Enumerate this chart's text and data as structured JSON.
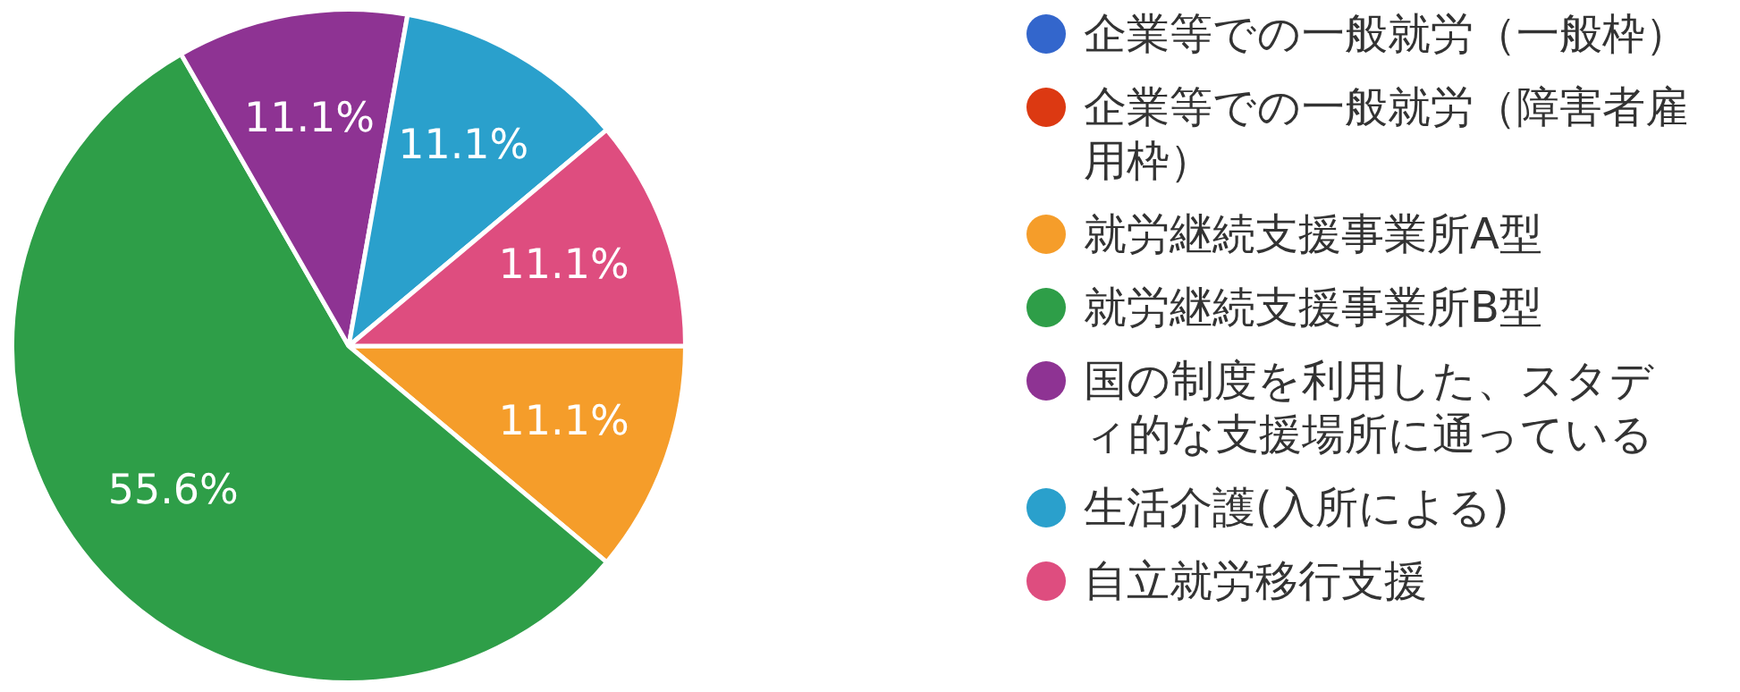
{
  "chart_data": {
    "type": "pie",
    "categories": [
      "企業等での一般就労（一般枠）",
      "企業等での一般就労（障害者雇用枠）",
      "就労継続支援事業所A型",
      "就労継続支援事業所B型",
      "国の制度を利用した、スタディ的な支援場所に通っている",
      "生活介護(入所による)",
      "自立就労移行支援"
    ],
    "values": [
      0,
      0,
      11.1,
      55.6,
      11.1,
      11.1,
      11.1
    ],
    "value_labels": [
      null,
      null,
      "11.1%",
      "55.6%",
      "11.1%",
      "11.1%",
      "11.1%"
    ],
    "colors": [
      "#3366cc",
      "#dc3912",
      "#f59d2a",
      "#2e9e48",
      "#8e3393",
      "#2aa0cc",
      "#de4d7f"
    ],
    "legend": "right"
  }
}
